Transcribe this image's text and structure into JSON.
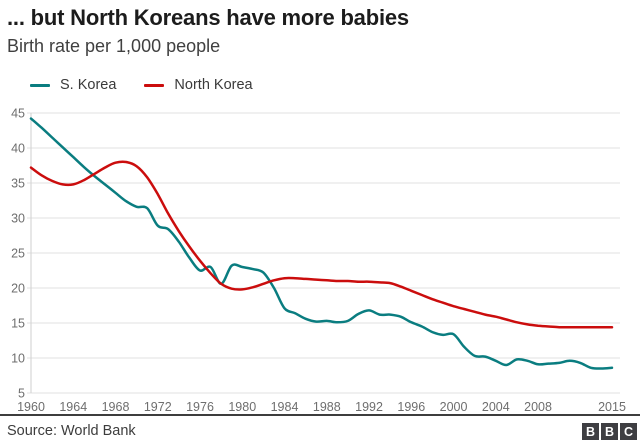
{
  "header": {
    "title": "... but North Koreans have more babies",
    "subtitle": "Birth rate per 1,000 people"
  },
  "legend": [
    {
      "label": "S. Korea",
      "color": "#0A7D80"
    },
    {
      "label": "North Korea",
      "color": "#CB0D0D"
    }
  ],
  "footer": {
    "source": "Source: World Bank",
    "logo_letters": [
      "B",
      "B",
      "C"
    ]
  },
  "colors": {
    "south_korea_line": "#0A7D80",
    "north_korea_line": "#CB0D0D",
    "gridline": "#e2e2e2",
    "axis_line": "#cfcfcf",
    "tick_text": "#6e6e6e"
  },
  "chart_data": {
    "type": "line",
    "title": "... but North Koreans have more babies",
    "subtitle": "Birth rate per 1,000 people",
    "xlabel": "",
    "ylabel": "Birth rate per 1,000 people",
    "xlim": [
      1960,
      2015
    ],
    "ylim": [
      5,
      45
    ],
    "yticks": [
      5,
      10,
      15,
      20,
      25,
      30,
      35,
      40,
      45
    ],
    "xticks": [
      1960,
      1964,
      1968,
      1972,
      1976,
      1980,
      1984,
      1988,
      1992,
      1996,
      2000,
      2004,
      2008,
      2015
    ],
    "grid": "horizontal",
    "legend_position": "top",
    "x": [
      1960,
      1961,
      1962,
      1963,
      1964,
      1965,
      1966,
      1967,
      1968,
      1969,
      1970,
      1971,
      1972,
      1973,
      1974,
      1975,
      1976,
      1977,
      1978,
      1979,
      1980,
      1981,
      1982,
      1983,
      1984,
      1985,
      1986,
      1987,
      1988,
      1989,
      1990,
      1991,
      1992,
      1993,
      1994,
      1995,
      1996,
      1997,
      1998,
      1999,
      2000,
      2001,
      2002,
      2003,
      2004,
      2005,
      2006,
      2007,
      2008,
      2009,
      2010,
      2011,
      2012,
      2013,
      2014,
      2015
    ],
    "series": [
      {
        "name": "S. Korea",
        "color": "#0A7D80",
        "values": [
          44.2,
          42.9,
          41.5,
          40.1,
          38.7,
          37.3,
          36.0,
          34.8,
          33.6,
          32.4,
          31.6,
          31.4,
          28.9,
          28.4,
          26.6,
          24.3,
          22.5,
          23.0,
          20.6,
          23.2,
          23.0,
          22.7,
          22.2,
          20.0,
          17.1,
          16.4,
          15.6,
          15.2,
          15.3,
          15.1,
          15.3,
          16.3,
          16.8,
          16.2,
          16.2,
          15.9,
          15.1,
          14.5,
          13.7,
          13.3,
          13.4,
          11.6,
          10.3,
          10.2,
          9.6,
          9.0,
          9.8,
          9.6,
          9.1,
          9.2,
          9.3,
          9.6,
          9.3,
          8.6,
          8.5,
          8.6
        ]
      },
      {
        "name": "North Korea",
        "color": "#CB0D0D",
        "values": [
          37.2,
          36.1,
          35.3,
          34.8,
          34.8,
          35.4,
          36.3,
          37.2,
          37.9,
          38.0,
          37.4,
          35.8,
          33.4,
          30.6,
          28.1,
          25.9,
          23.9,
          22.1,
          20.6,
          19.9,
          19.8,
          20.1,
          20.6,
          21.1,
          21.4,
          21.4,
          21.3,
          21.2,
          21.1,
          21.0,
          21.0,
          20.9,
          20.9,
          20.8,
          20.7,
          20.2,
          19.6,
          19.0,
          18.4,
          17.9,
          17.4,
          17.0,
          16.6,
          16.2,
          15.9,
          15.5,
          15.1,
          14.8,
          14.6,
          14.5,
          14.4,
          14.4,
          14.4,
          14.4,
          14.4,
          14.4
        ]
      }
    ]
  }
}
